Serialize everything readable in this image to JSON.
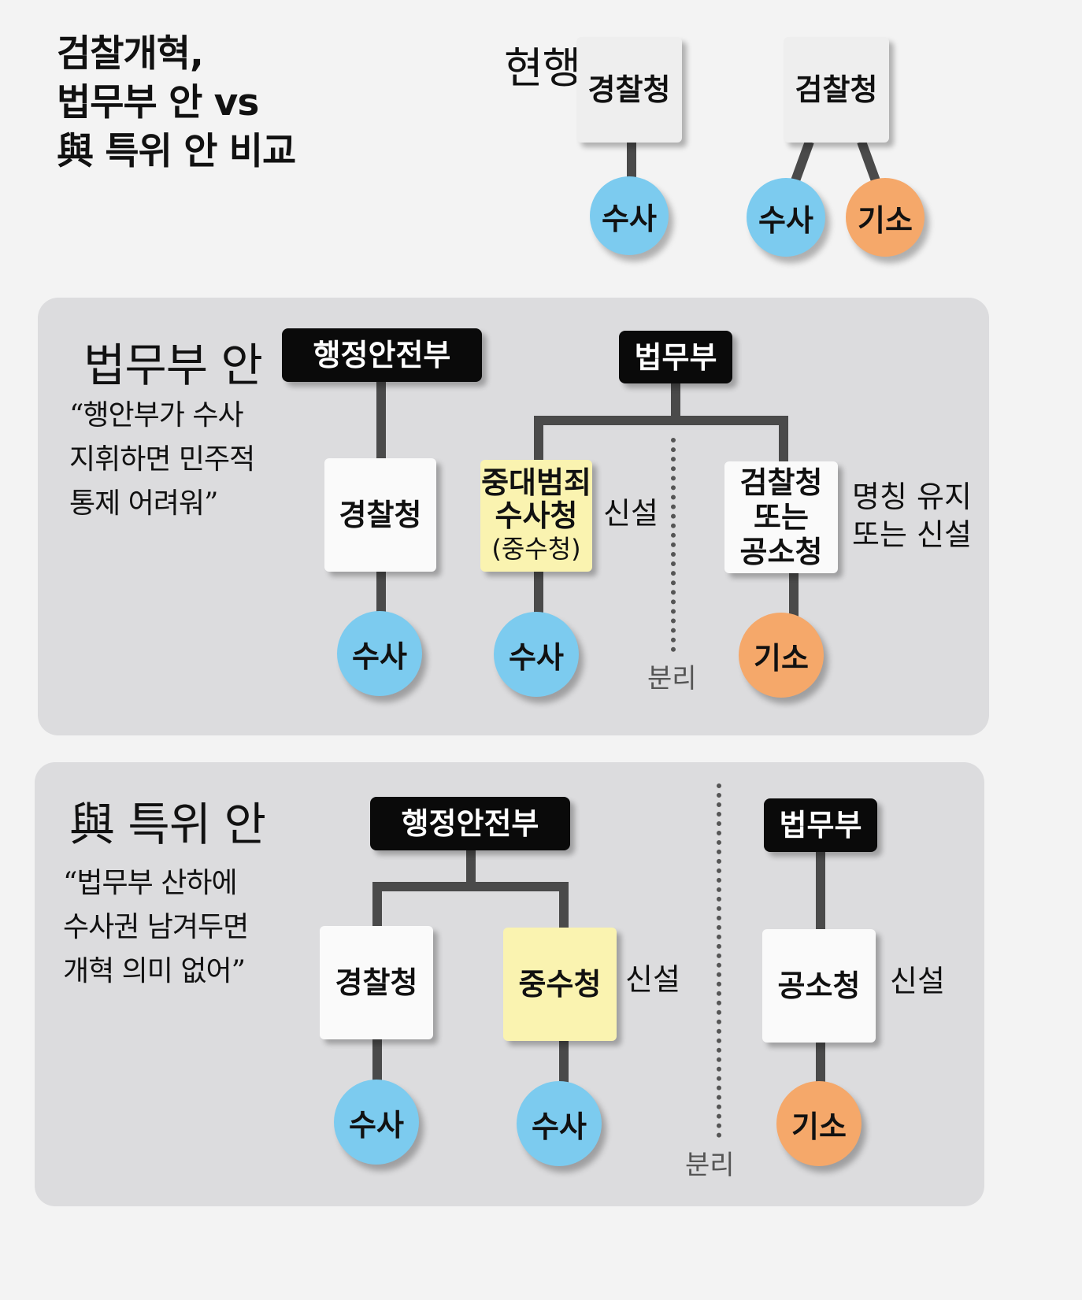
{
  "title": "검찰개혁,\n법무부 안 vs\n與 특위 안 비교",
  "current": {
    "label": "현행",
    "police": {
      "box": "경찰청",
      "role": "수사"
    },
    "prosecution": {
      "box": "검찰청",
      "roles": [
        "수사",
        "기소"
      ]
    }
  },
  "ministry_plan": {
    "title": "법무부 안",
    "quote": "“행안부가 수사\n 지휘하면 민주적\n통제 어려워”",
    "mois": "행정안전부",
    "moj": "법무부",
    "police": "경찰청",
    "serious_crime_line1": "중대범죄",
    "serious_crime_line2": "수사청",
    "serious_crime_abbr": "(중수청)",
    "new_label": "신설",
    "prosecution_line1": "검찰청",
    "prosecution_line2": "또는",
    "prosecution_line3": "공소청",
    "prosecution_note": "명칭 유지\n또는 신설",
    "investigate": "수사",
    "prosecute": "기소",
    "separation": "분리"
  },
  "party_plan": {
    "title": "與 특위 안",
    "quote": "“법무부 산하에\n 수사권 남겨두면\n 개혁 의미 없어”",
    "mois": "행정안전부",
    "moj": "법무부",
    "police": "경찰청",
    "serious_crime": "중수청",
    "new_label_1": "신설",
    "prosecution": "공소청",
    "new_label_2": "신설",
    "investigate": "수사",
    "prosecute": "기소",
    "separation": "분리"
  },
  "colors": {
    "investigate": "#7ccbef",
    "prosecute": "#f5a86a",
    "new_agency": "#faf3b0"
  }
}
